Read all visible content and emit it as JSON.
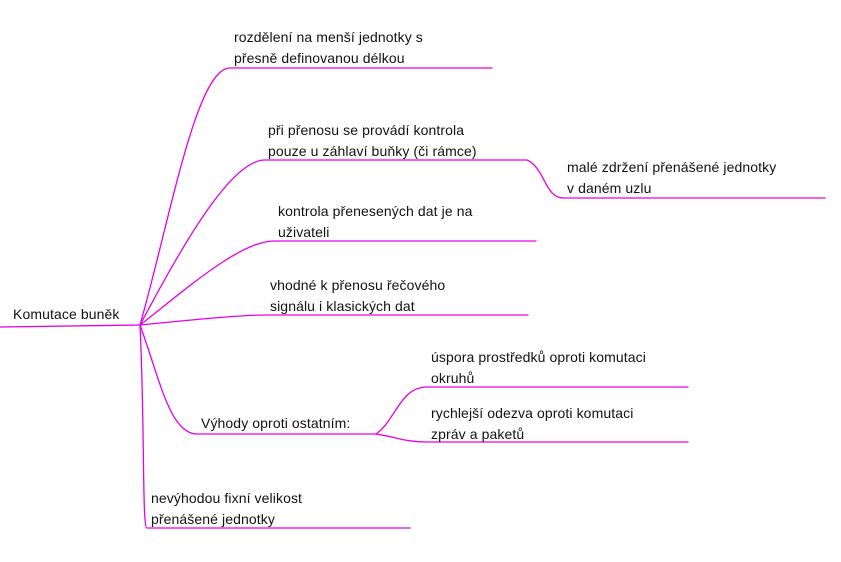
{
  "colors": {
    "branch": "#e600e6",
    "text": "#111111",
    "background": "#ffffff"
  },
  "mindmap": {
    "root": {
      "label": "Komutace buněk"
    },
    "branches": {
      "fixed_length": {
        "line1": "rozdělení na menší jednotky s",
        "line2": "přesně definovanou délkou"
      },
      "header_check": {
        "line1": "při přenosu se provádí kontrola",
        "line2": "pouze u záhlaví buňky (či rámce)"
      },
      "small_delay": {
        "line1": "malé zdržení přenášené jednotky",
        "line2": "v daném uzlu"
      },
      "user_check": {
        "line1": "kontrola přenesených dat je na",
        "line2": "uživateli"
      },
      "voice_data": {
        "line1": "vhodné k přenosu řečového",
        "line2": "signálu i klasických dat"
      },
      "advantages": {
        "label": "Výhody oproti ostatním:"
      },
      "resource_saving": {
        "line1": "úspora prostředků oproti komutaci",
        "line2": "okruhů"
      },
      "faster_response": {
        "line1": "rychlejší odezva oproti komutaci",
        "line2": "zpráv a paketů"
      },
      "disadvantage": {
        "line1": "nevýhodou fixní velikost",
        "line2": "přenášené jednotky"
      }
    }
  }
}
